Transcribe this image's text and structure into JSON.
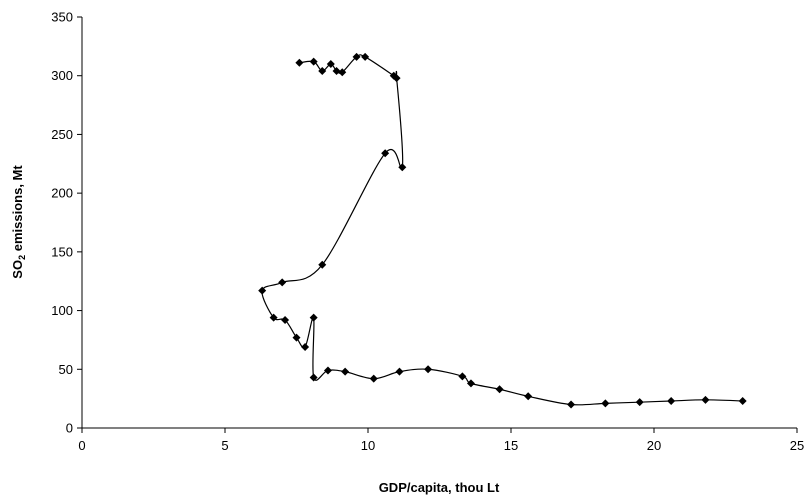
{
  "chart_data": {
    "type": "scatter",
    "xlabel": "GDP/capita, thou Lt",
    "ylabel": {
      "prefix": "SO",
      "sub": "2",
      "suffix": " emissions, Mt"
    },
    "xlim": [
      0,
      25
    ],
    "ylim": [
      0,
      350
    ],
    "x_ticks": [
      "0",
      "5",
      "10",
      "15",
      "20",
      "25"
    ],
    "y_ticks": [
      "0",
      "50",
      "100",
      "150",
      "200",
      "250",
      "300",
      "350"
    ],
    "grid": false,
    "legend": "none",
    "series": [
      {
        "points": [
          [
            7.6,
            311
          ],
          [
            8.1,
            312
          ],
          [
            8.4,
            304
          ],
          [
            8.7,
            310
          ],
          [
            8.9,
            304
          ],
          [
            9.1,
            303
          ],
          [
            9.6,
            316
          ],
          [
            9.9,
            316
          ],
          [
            10.9,
            300
          ],
          [
            11.0,
            298
          ],
          [
            11.2,
            222
          ],
          [
            10.6,
            234
          ],
          [
            8.4,
            139
          ],
          [
            7.0,
            124
          ],
          [
            6.3,
            117
          ],
          [
            6.7,
            94
          ],
          [
            7.1,
            92
          ],
          [
            7.5,
            77
          ],
          [
            7.8,
            69
          ],
          [
            8.1,
            94
          ],
          [
            8.1,
            43
          ],
          [
            8.6,
            49
          ],
          [
            9.2,
            48
          ],
          [
            10.2,
            42
          ],
          [
            11.1,
            48
          ],
          [
            12.1,
            50
          ],
          [
            13.3,
            44
          ],
          [
            13.6,
            38
          ],
          [
            14.6,
            33
          ],
          [
            15.6,
            27
          ],
          [
            17.1,
            20
          ],
          [
            18.3,
            21
          ],
          [
            19.5,
            22
          ],
          [
            20.6,
            23
          ],
          [
            21.8,
            24
          ],
          [
            23.1,
            23
          ]
        ]
      }
    ],
    "colors": {
      "line": "#000000",
      "marker": "#000000",
      "axis": "#000000"
    }
  }
}
